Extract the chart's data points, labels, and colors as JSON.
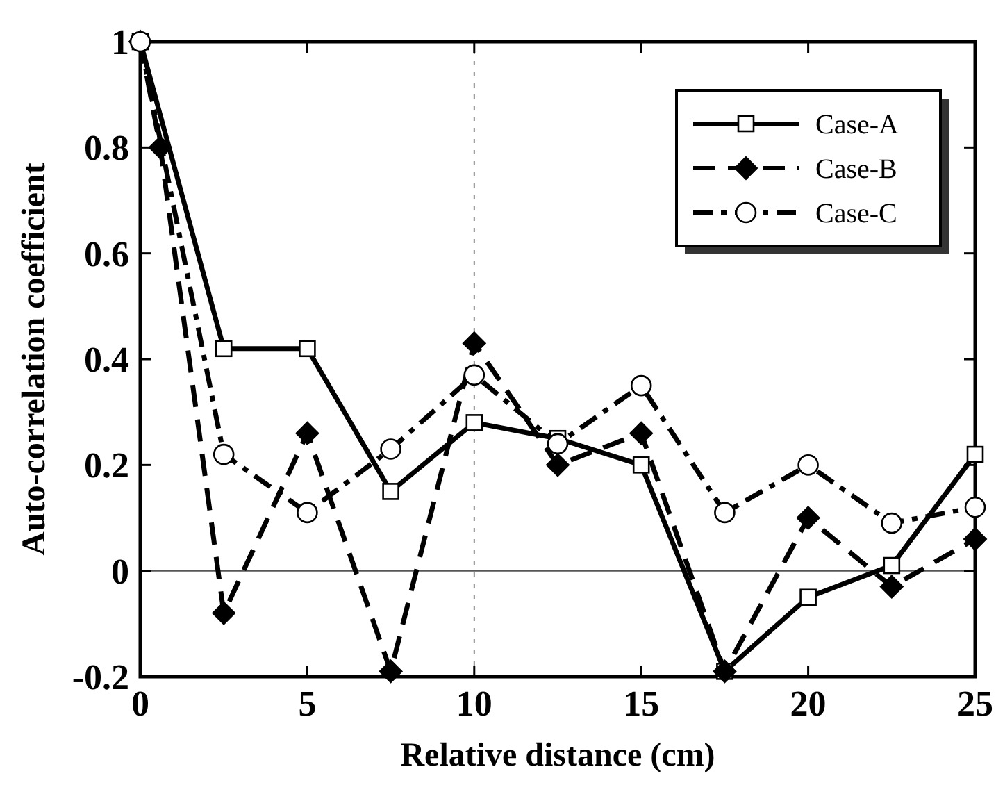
{
  "chart_data": {
    "type": "line",
    "xlabel": "Relative distance (cm)",
    "ylabel": "Auto-correlation coefficient",
    "x": [
      0,
      2.5,
      5,
      7.5,
      10,
      12.5,
      15,
      17.5,
      20,
      22.5,
      25
    ],
    "xlim": [
      0,
      25
    ],
    "xticks": [
      0,
      5,
      10,
      15,
      20,
      25
    ],
    "ylim": [
      -0.2,
      1
    ],
    "yticks": [
      -0.2,
      0,
      0.2,
      0.4,
      0.6,
      0.8,
      1
    ],
    "legend": "top right",
    "grid": false,
    "ref_lines": [
      {
        "axis": "x",
        "value": 10,
        "line_style": "dotted",
        "color": "#888888"
      },
      {
        "axis": "y",
        "value": 0,
        "line_style": "solid",
        "color": "#555555"
      }
    ],
    "series": [
      {
        "name": "Case-A",
        "color": "#000000",
        "marker": "square",
        "line_style": "solid",
        "values": [
          1,
          0.42,
          0.42,
          0.15,
          0.28,
          0.25,
          0.2,
          -0.19,
          -0.05,
          0.01,
          0.22
        ]
      },
      {
        "name": "Case-B",
        "color": "#000000",
        "marker": "diamond",
        "line_style": "dashed",
        "x": [
          0,
          0.6,
          2.5,
          5,
          7.5,
          10,
          12.5,
          15,
          17.5,
          20,
          22.5,
          25
        ],
        "values": [
          1,
          0.8,
          -0.08,
          0.26,
          -0.19,
          0.43,
          0.2,
          0.26,
          -0.19,
          0.1,
          -0.03,
          0.06
        ]
      },
      {
        "name": "Case-C",
        "color": "#000000",
        "marker": "circle",
        "line_style": "dashdot",
        "values": [
          1,
          0.22,
          0.11,
          0.23,
          0.37,
          0.24,
          0.35,
          0.11,
          0.2,
          0.09,
          0.12
        ]
      }
    ]
  }
}
